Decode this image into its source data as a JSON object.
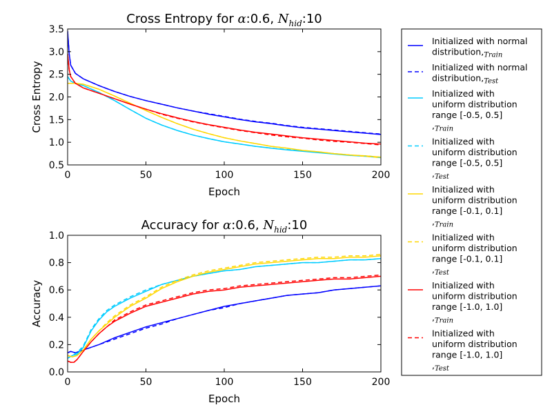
{
  "chart_data": [
    {
      "type": "line",
      "title": "Cross Entropy for α:0.6, N_hid:10",
      "title_parts": {
        "prefix": "Cross Entropy for ",
        "alpha": "α",
        "alpha_value": ":0.6, ",
        "n": "N",
        "n_sub": "hid",
        "n_value": ":10"
      },
      "xlabel": "Epoch",
      "ylabel": "Cross Entropy",
      "xlim": [
        0,
        200
      ],
      "ylim": [
        0.5,
        3.5
      ],
      "xticks": [
        "0",
        "50",
        "100",
        "150",
        "200"
      ],
      "yticks": [
        "0.5",
        "1.0",
        "1.5",
        "2.0",
        "2.5",
        "3.0",
        "3.5"
      ],
      "grid": false,
      "series": [
        {
          "legend_index": 0,
          "color": "#0000ff",
          "dashed": false,
          "x": [
            0,
            1,
            2,
            5,
            10,
            20,
            30,
            40,
            50,
            60,
            70,
            80,
            90,
            100,
            110,
            120,
            130,
            140,
            150,
            160,
            170,
            180,
            190,
            200
          ],
          "y": [
            3.45,
            2.95,
            2.7,
            2.52,
            2.4,
            2.25,
            2.12,
            2.01,
            1.92,
            1.84,
            1.76,
            1.69,
            1.62,
            1.56,
            1.5,
            1.45,
            1.41,
            1.36,
            1.32,
            1.29,
            1.26,
            1.23,
            1.2,
            1.17
          ]
        },
        {
          "legend_index": 1,
          "color": "#0000ff",
          "dashed": true,
          "x": [
            0,
            1,
            2,
            5,
            10,
            20,
            30,
            40,
            50,
            60,
            70,
            80,
            90,
            100,
            110,
            120,
            130,
            140,
            150,
            160,
            170,
            180,
            190,
            200
          ],
          "y": [
            3.45,
            2.95,
            2.7,
            2.52,
            2.4,
            2.25,
            2.12,
            2.01,
            1.92,
            1.84,
            1.76,
            1.69,
            1.63,
            1.57,
            1.51,
            1.46,
            1.42,
            1.37,
            1.33,
            1.3,
            1.27,
            1.24,
            1.21,
            1.18
          ]
        },
        {
          "legend_index": 2,
          "color": "#00ccff",
          "dashed": false,
          "x": [
            0,
            2,
            5,
            10,
            20,
            30,
            40,
            50,
            60,
            70,
            80,
            90,
            100,
            110,
            120,
            130,
            140,
            150,
            160,
            170,
            180,
            190,
            200
          ],
          "y": [
            2.45,
            2.35,
            2.3,
            2.25,
            2.1,
            1.92,
            1.72,
            1.53,
            1.38,
            1.26,
            1.16,
            1.08,
            1.01,
            0.96,
            0.91,
            0.87,
            0.83,
            0.8,
            0.77,
            0.74,
            0.71,
            0.69,
            0.66
          ]
        },
        {
          "legend_index": 3,
          "color": "#00ccff",
          "dashed": true,
          "x": [
            0,
            2,
            5,
            10,
            20,
            30,
            40,
            50,
            60,
            70,
            80,
            90,
            100,
            110,
            120,
            130,
            140,
            150,
            160,
            170,
            180,
            190,
            200
          ],
          "y": [
            2.45,
            2.35,
            2.3,
            2.25,
            2.1,
            1.92,
            1.72,
            1.53,
            1.38,
            1.26,
            1.16,
            1.08,
            1.01,
            0.96,
            0.91,
            0.87,
            0.84,
            0.81,
            0.78,
            0.75,
            0.72,
            0.7,
            0.67
          ]
        },
        {
          "legend_index": 4,
          "color": "#ffd700",
          "dashed": false,
          "x": [
            0,
            5,
            10,
            20,
            30,
            40,
            50,
            60,
            70,
            80,
            90,
            100,
            110,
            120,
            130,
            140,
            150,
            160,
            170,
            180,
            190,
            200
          ],
          "y": [
            2.3,
            2.3,
            2.28,
            2.17,
            2.02,
            1.86,
            1.7,
            1.55,
            1.41,
            1.29,
            1.19,
            1.1,
            1.03,
            0.97,
            0.91,
            0.87,
            0.82,
            0.79,
            0.75,
            0.72,
            0.7,
            0.67
          ]
        },
        {
          "legend_index": 5,
          "color": "#ffd700",
          "dashed": true,
          "x": [
            0,
            5,
            10,
            20,
            30,
            40,
            50,
            60,
            70,
            80,
            90,
            100,
            110,
            120,
            130,
            140,
            150,
            160,
            170,
            180,
            190,
            200
          ],
          "y": [
            2.3,
            2.3,
            2.28,
            2.17,
            2.02,
            1.86,
            1.7,
            1.55,
            1.41,
            1.29,
            1.19,
            1.1,
            1.03,
            0.97,
            0.91,
            0.87,
            0.82,
            0.79,
            0.75,
            0.72,
            0.69,
            0.66
          ]
        },
        {
          "legend_index": 6,
          "color": "#ff0000",
          "dashed": false,
          "x": [
            0,
            1,
            2,
            5,
            10,
            20,
            30,
            40,
            50,
            60,
            70,
            80,
            90,
            100,
            110,
            120,
            130,
            140,
            150,
            160,
            170,
            180,
            190,
            200
          ],
          "y": [
            2.95,
            2.6,
            2.45,
            2.3,
            2.2,
            2.08,
            1.96,
            1.84,
            1.73,
            1.63,
            1.54,
            1.46,
            1.39,
            1.33,
            1.27,
            1.22,
            1.18,
            1.14,
            1.1,
            1.07,
            1.04,
            1.01,
            0.98,
            0.96
          ]
        },
        {
          "legend_index": 7,
          "color": "#ff0000",
          "dashed": true,
          "x": [
            0,
            1,
            2,
            5,
            10,
            20,
            30,
            40,
            50,
            60,
            70,
            80,
            90,
            100,
            110,
            120,
            130,
            140,
            150,
            160,
            170,
            180,
            190,
            200
          ],
          "y": [
            2.95,
            2.6,
            2.45,
            2.3,
            2.2,
            2.08,
            1.96,
            1.84,
            1.73,
            1.62,
            1.53,
            1.45,
            1.38,
            1.32,
            1.26,
            1.21,
            1.16,
            1.12,
            1.09,
            1.05,
            1.02,
            1.0,
            0.97,
            0.94
          ]
        }
      ]
    },
    {
      "type": "line",
      "title": "Accuracy for α:0.6, N_hid:10",
      "title_parts": {
        "prefix": "Accuracy for ",
        "alpha": "α",
        "alpha_value": ":0.6, ",
        "n": "N",
        "n_sub": "hid",
        "n_value": ":10"
      },
      "xlabel": "Epoch",
      "ylabel": "Accuracy",
      "xlim": [
        0,
        200
      ],
      "ylim": [
        0.0,
        1.0
      ],
      "xticks": [
        "0",
        "50",
        "100",
        "150",
        "200"
      ],
      "yticks": [
        "0.0",
        "0.2",
        "0.4",
        "0.6",
        "0.8",
        "1.0"
      ],
      "grid": false,
      "series": [
        {
          "legend_index": 0,
          "color": "#0000ff",
          "dashed": false,
          "x": [
            0,
            2,
            5,
            10,
            20,
            30,
            40,
            50,
            60,
            70,
            80,
            90,
            100,
            110,
            120,
            130,
            140,
            150,
            160,
            170,
            180,
            190,
            200
          ],
          "y": [
            0.14,
            0.15,
            0.14,
            0.16,
            0.2,
            0.25,
            0.29,
            0.33,
            0.36,
            0.39,
            0.42,
            0.45,
            0.48,
            0.5,
            0.52,
            0.54,
            0.56,
            0.57,
            0.58,
            0.6,
            0.61,
            0.62,
            0.63
          ]
        },
        {
          "legend_index": 1,
          "color": "#0000ff",
          "dashed": true,
          "x": [
            0,
            2,
            5,
            10,
            20,
            30,
            40,
            50,
            60,
            70,
            80,
            90,
            100,
            110,
            120,
            130,
            140,
            150,
            160,
            170,
            180,
            190,
            200
          ],
          "y": [
            0.14,
            0.15,
            0.14,
            0.16,
            0.2,
            0.24,
            0.28,
            0.32,
            0.35,
            0.39,
            0.42,
            0.45,
            0.47,
            0.5,
            0.52,
            0.54,
            0.56,
            0.57,
            0.58,
            0.6,
            0.61,
            0.62,
            0.63
          ]
        },
        {
          "legend_index": 2,
          "color": "#00ccff",
          "dashed": false,
          "x": [
            0,
            3,
            6,
            10,
            15,
            20,
            25,
            30,
            40,
            50,
            60,
            70,
            80,
            90,
            100,
            110,
            120,
            130,
            140,
            150,
            160,
            170,
            180,
            190,
            200
          ],
          "y": [
            0.1,
            0.12,
            0.13,
            0.18,
            0.3,
            0.38,
            0.44,
            0.48,
            0.54,
            0.59,
            0.64,
            0.67,
            0.7,
            0.72,
            0.74,
            0.75,
            0.77,
            0.78,
            0.79,
            0.8,
            0.8,
            0.81,
            0.82,
            0.82,
            0.83
          ]
        },
        {
          "legend_index": 3,
          "color": "#00ccff",
          "dashed": true,
          "x": [
            0,
            3,
            6,
            10,
            15,
            20,
            25,
            30,
            40,
            50,
            60,
            70,
            80,
            90,
            100,
            110,
            120,
            130,
            140,
            150,
            160,
            170,
            180,
            190,
            200
          ],
          "y": [
            0.1,
            0.12,
            0.14,
            0.19,
            0.31,
            0.39,
            0.45,
            0.49,
            0.55,
            0.6,
            0.64,
            0.67,
            0.7,
            0.72,
            0.74,
            0.75,
            0.77,
            0.78,
            0.79,
            0.8,
            0.8,
            0.81,
            0.82,
            0.82,
            0.83
          ]
        },
        {
          "legend_index": 4,
          "color": "#ffd700",
          "dashed": false,
          "x": [
            0,
            3,
            6,
            10,
            15,
            20,
            25,
            30,
            40,
            50,
            60,
            70,
            80,
            90,
            100,
            110,
            120,
            130,
            140,
            150,
            160,
            170,
            180,
            190,
            200
          ],
          "y": [
            0.12,
            0.11,
            0.12,
            0.16,
            0.24,
            0.3,
            0.35,
            0.4,
            0.48,
            0.54,
            0.61,
            0.66,
            0.7,
            0.73,
            0.75,
            0.77,
            0.79,
            0.8,
            0.81,
            0.82,
            0.83,
            0.83,
            0.84,
            0.84,
            0.85
          ]
        },
        {
          "legend_index": 5,
          "color": "#ffd700",
          "dashed": true,
          "x": [
            0,
            3,
            6,
            10,
            15,
            20,
            25,
            30,
            40,
            50,
            60,
            70,
            80,
            90,
            100,
            110,
            120,
            130,
            140,
            150,
            160,
            170,
            180,
            190,
            200
          ],
          "y": [
            0.12,
            0.11,
            0.12,
            0.16,
            0.24,
            0.3,
            0.36,
            0.41,
            0.49,
            0.55,
            0.62,
            0.67,
            0.71,
            0.74,
            0.76,
            0.78,
            0.8,
            0.81,
            0.82,
            0.83,
            0.84,
            0.84,
            0.85,
            0.85,
            0.86
          ]
        },
        {
          "legend_index": 6,
          "color": "#ff0000",
          "dashed": false,
          "x": [
            0,
            2,
            4,
            6,
            10,
            15,
            20,
            25,
            30,
            40,
            50,
            60,
            70,
            80,
            90,
            100,
            110,
            120,
            130,
            140,
            150,
            160,
            170,
            180,
            190,
            200
          ],
          "y": [
            0.08,
            0.07,
            0.07,
            0.09,
            0.15,
            0.22,
            0.28,
            0.33,
            0.37,
            0.43,
            0.48,
            0.51,
            0.54,
            0.57,
            0.59,
            0.6,
            0.62,
            0.63,
            0.64,
            0.65,
            0.66,
            0.67,
            0.68,
            0.68,
            0.69,
            0.7
          ]
        },
        {
          "legend_index": 7,
          "color": "#ff0000",
          "dashed": true,
          "x": [
            0,
            2,
            4,
            6,
            10,
            15,
            20,
            25,
            30,
            40,
            50,
            60,
            70,
            80,
            90,
            100,
            110,
            120,
            130,
            140,
            150,
            160,
            170,
            180,
            190,
            200
          ],
          "y": [
            0.08,
            0.07,
            0.07,
            0.09,
            0.15,
            0.22,
            0.28,
            0.33,
            0.38,
            0.44,
            0.49,
            0.52,
            0.55,
            0.58,
            0.6,
            0.61,
            0.63,
            0.64,
            0.65,
            0.66,
            0.67,
            0.68,
            0.69,
            0.69,
            0.7,
            0.71
          ]
        }
      ]
    }
  ],
  "legend": {
    "placement": "right",
    "entries": [
      {
        "lines": [
          "Initialized with normal",
          "distribution,"
        ],
        "subscript": "Train",
        "color": "#0000ff",
        "dashed": false
      },
      {
        "lines": [
          "Initialized with normal",
          "distribution,"
        ],
        "subscript": "Test",
        "color": "#0000ff",
        "dashed": true
      },
      {
        "lines": [
          "Initialized with",
          "uniform distribution",
          " range [-0.5, 0.5]",
          ","
        ],
        "subscript": "Train",
        "color": "#00ccff",
        "dashed": false
      },
      {
        "lines": [
          "Initialized with",
          "uniform distribution",
          " range [-0.5, 0.5]",
          ","
        ],
        "subscript": "Test",
        "color": "#00ccff",
        "dashed": true
      },
      {
        "lines": [
          "Initialized with",
          "uniform distribution",
          " range [-0.1, 0.1]",
          ","
        ],
        "subscript": "Train",
        "color": "#ffd700",
        "dashed": false
      },
      {
        "lines": [
          "Initialized with",
          "uniform distribution",
          " range [-0.1, 0.1]",
          ","
        ],
        "subscript": "Test",
        "color": "#ffd700",
        "dashed": true
      },
      {
        "lines": [
          "Initialized with",
          "uniform distribution",
          " range [-1.0, 1.0]",
          ","
        ],
        "subscript": "Train",
        "color": "#ff0000",
        "dashed": false
      },
      {
        "lines": [
          "Initialized with",
          "uniform distribution",
          " range [-1.0, 1.0]",
          ","
        ],
        "subscript": "Test",
        "color": "#ff0000",
        "dashed": true
      }
    ]
  }
}
